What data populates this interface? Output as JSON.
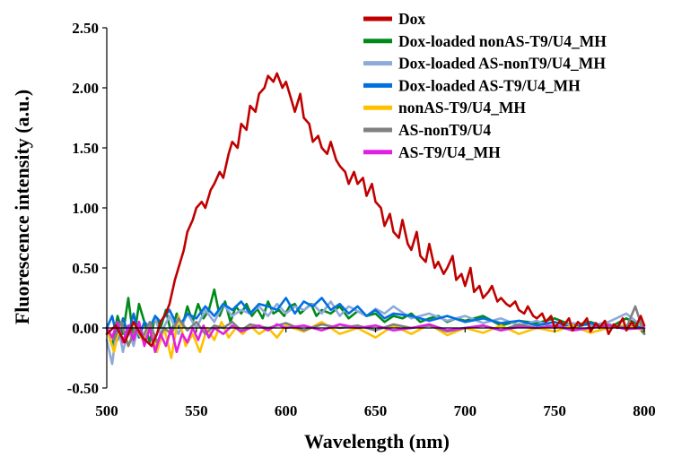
{
  "chart_data": {
    "type": "line",
    "title": "",
    "xlabel": "Wavelength (nm)",
    "ylabel": "Fluorescence intensity (a.u.)",
    "xlim": [
      500,
      800
    ],
    "ylim": [
      -0.5,
      2.5
    ],
    "xticks": [
      500,
      550,
      600,
      650,
      700,
      750,
      800
    ],
    "xtick_labels": [
      "500",
      "550",
      "600",
      "650",
      "700",
      "750",
      "800"
    ],
    "yticks": [
      -0.5,
      0,
      0.5,
      1,
      1.5,
      2,
      2.5
    ],
    "ytick_labels": [
      "-0.50",
      "0.00",
      "0.50",
      "1.00",
      "1.50",
      "2.00",
      "2.50"
    ],
    "grid": false,
    "legend_position": "top-right",
    "series": [
      {
        "name": "Dox",
        "color": "#c00000",
        "x": [
          500,
          505,
          510,
          515,
          520,
          525,
          528,
          530,
          533,
          535,
          538,
          540,
          543,
          545,
          548,
          550,
          553,
          555,
          558,
          560,
          563,
          565,
          568,
          570,
          573,
          575,
          578,
          580,
          583,
          585,
          588,
          590,
          593,
          595,
          598,
          600,
          603,
          605,
          608,
          610,
          613,
          615,
          618,
          620,
          623,
          625,
          628,
          630,
          633,
          635,
          638,
          640,
          643,
          645,
          648,
          650,
          653,
          655,
          658,
          660,
          663,
          665,
          668,
          670,
          673,
          675,
          678,
          680,
          683,
          685,
          688,
          690,
          693,
          695,
          698,
          700,
          703,
          705,
          708,
          710,
          713,
          715,
          718,
          720,
          723,
          725,
          728,
          730,
          733,
          735,
          738,
          740,
          743,
          745,
          748,
          750,
          753,
          755,
          758,
          760,
          763,
          765,
          768,
          770,
          773,
          775,
          778,
          780,
          783,
          785,
          788,
          790,
          793,
          795,
          798,
          800
        ],
        "y": [
          -0.05,
          0.02,
          -0.12,
          0.05,
          -0.08,
          -0.15,
          -0.05,
          0.05,
          0.12,
          0.2,
          0.4,
          0.5,
          0.65,
          0.8,
          0.9,
          1.0,
          1.05,
          1.0,
          1.15,
          1.2,
          1.3,
          1.25,
          1.45,
          1.55,
          1.5,
          1.7,
          1.65,
          1.85,
          1.8,
          1.95,
          2.0,
          2.1,
          2.05,
          2.12,
          2.0,
          2.05,
          1.9,
          1.8,
          1.95,
          1.75,
          1.7,
          1.55,
          1.6,
          1.5,
          1.45,
          1.55,
          1.4,
          1.35,
          1.3,
          1.2,
          1.3,
          1.2,
          1.25,
          1.1,
          1.2,
          1.05,
          1.0,
          0.85,
          0.95,
          0.8,
          0.75,
          0.9,
          0.7,
          0.65,
          0.8,
          0.6,
          0.55,
          0.7,
          0.5,
          0.55,
          0.45,
          0.5,
          0.6,
          0.4,
          0.45,
          0.35,
          0.5,
          0.3,
          0.35,
          0.25,
          0.3,
          0.35,
          0.22,
          0.25,
          0.2,
          0.18,
          0.22,
          0.15,
          0.12,
          0.18,
          0.1,
          0.08,
          0.12,
          0.05,
          0.1,
          0.0,
          0.06,
          0.02,
          0.08,
          -0.02,
          0.05,
          0.02,
          0.08,
          -0.03,
          0.04,
          0.0,
          0.06,
          -0.05,
          0.03,
          0.0,
          0.08,
          -0.02,
          0.05,
          0.0,
          0.1,
          0.02
        ]
      },
      {
        "name": "Dox-loaded nonAS-T9/U4_MH",
        "color": "#008a1a",
        "x": [
          500,
          503,
          506,
          509,
          512,
          515,
          518,
          521,
          524,
          527,
          530,
          533,
          536,
          539,
          542,
          545,
          548,
          551,
          554,
          557,
          560,
          563,
          566,
          569,
          572,
          575,
          578,
          581,
          584,
          587,
          590,
          593,
          596,
          599,
          602,
          605,
          608,
          611,
          614,
          617,
          620,
          625,
          630,
          635,
          640,
          645,
          650,
          655,
          660,
          665,
          670,
          675,
          680,
          685,
          690,
          695,
          700,
          710,
          720,
          730,
          740,
          750,
          760,
          770,
          780,
          790,
          795,
          800
        ],
        "y": [
          0.0,
          -0.15,
          0.1,
          -0.05,
          0.25,
          -0.1,
          0.2,
          0.05,
          -0.12,
          0.1,
          0.0,
          0.15,
          -0.05,
          0.12,
          0.0,
          0.18,
          0.05,
          0.2,
          0.08,
          0.15,
          0.32,
          0.1,
          0.22,
          0.05,
          0.18,
          0.12,
          0.2,
          0.1,
          0.16,
          0.08,
          0.22,
          0.12,
          0.15,
          0.1,
          0.18,
          0.2,
          0.12,
          0.16,
          0.2,
          0.1,
          0.15,
          0.12,
          0.18,
          0.08,
          0.14,
          0.1,
          0.12,
          0.05,
          0.1,
          0.08,
          0.12,
          0.05,
          0.08,
          0.1,
          0.05,
          0.08,
          0.06,
          0.1,
          0.02,
          0.06,
          0.04,
          0.08,
          0.02,
          0.05,
          0.0,
          0.08,
          0.04,
          -0.05
        ]
      },
      {
        "name": "Dox-loaded AS-nonT9/U4_MH",
        "color": "#8eaadb",
        "x": [
          500,
          503,
          506,
          509,
          512,
          515,
          518,
          521,
          524,
          527,
          530,
          535,
          540,
          545,
          550,
          555,
          560,
          565,
          570,
          575,
          580,
          585,
          590,
          595,
          600,
          605,
          610,
          615,
          620,
          625,
          630,
          635,
          640,
          645,
          650,
          655,
          660,
          670,
          680,
          690,
          700,
          710,
          720,
          730,
          740,
          750,
          760,
          770,
          780,
          790,
          800
        ],
        "y": [
          -0.1,
          -0.3,
          0.05,
          -0.2,
          0.0,
          -0.15,
          0.05,
          -0.1,
          0.0,
          0.08,
          -0.05,
          0.1,
          -0.05,
          0.12,
          0.0,
          0.15,
          0.05,
          0.2,
          0.1,
          0.15,
          0.12,
          0.18,
          0.1,
          0.2,
          0.12,
          0.18,
          0.15,
          0.2,
          0.12,
          0.22,
          0.1,
          0.18,
          0.14,
          0.1,
          0.16,
          0.12,
          0.18,
          0.08,
          0.12,
          0.06,
          0.1,
          0.04,
          0.08,
          0.02,
          0.06,
          0.0,
          0.04,
          0.02,
          0.05,
          0.12,
          0.0
        ]
      },
      {
        "name": "Dox-loaded AS-T9/U4_MH",
        "color": "#0070e0",
        "x": [
          500,
          503,
          506,
          509,
          512,
          515,
          518,
          521,
          524,
          527,
          530,
          535,
          540,
          545,
          550,
          555,
          560,
          565,
          570,
          575,
          580,
          585,
          590,
          595,
          600,
          605,
          610,
          615,
          620,
          625,
          630,
          635,
          640,
          645,
          650,
          655,
          660,
          670,
          680,
          690,
          700,
          710,
          720,
          730,
          740,
          750,
          760,
          770,
          780,
          790,
          800
        ],
        "y": [
          0.0,
          0.1,
          -0.1,
          0.08,
          -0.05,
          0.12,
          -0.08,
          0.05,
          0.0,
          0.1,
          0.05,
          0.15,
          0.0,
          0.12,
          0.08,
          0.18,
          0.1,
          0.2,
          0.15,
          0.22,
          0.12,
          0.2,
          0.18,
          0.15,
          0.25,
          0.12,
          0.22,
          0.18,
          0.25,
          0.15,
          0.2,
          0.12,
          0.18,
          0.1,
          0.15,
          0.08,
          0.12,
          0.1,
          0.06,
          0.1,
          0.05,
          0.08,
          0.04,
          0.06,
          0.02,
          0.05,
          0.0,
          0.04,
          0.0,
          0.02,
          0.0
        ]
      },
      {
        "name": "nonAS-T9/U4_MH",
        "color": "#ffc000",
        "x": [
          500,
          504,
          508,
          512,
          516,
          520,
          524,
          528,
          532,
          536,
          540,
          544,
          548,
          552,
          556,
          560,
          564,
          568,
          572,
          576,
          580,
          585,
          590,
          595,
          600,
          610,
          620,
          630,
          640,
          650,
          660,
          670,
          680,
          690,
          700,
          710,
          720,
          730,
          740,
          750,
          760,
          770,
          780,
          790,
          800
        ],
        "y": [
          0.0,
          -0.2,
          0.05,
          -0.15,
          0.0,
          -0.1,
          0.05,
          -0.2,
          0.0,
          -0.25,
          0.1,
          -0.15,
          -0.05,
          -0.2,
          0.0,
          -0.1,
          0.05,
          -0.08,
          0.0,
          -0.05,
          0.02,
          -0.05,
          0.0,
          -0.08,
          0.02,
          -0.03,
          0.05,
          -0.05,
          0.0,
          -0.08,
          0.02,
          -0.05,
          0.03,
          -0.06,
          0.0,
          -0.04,
          0.02,
          -0.05,
          0.0,
          -0.03,
          0.02,
          -0.04,
          0.0,
          0.02,
          -0.02
        ]
      },
      {
        "name": "AS-nonT9/U4",
        "color": "#808080",
        "x": [
          500,
          504,
          508,
          512,
          516,
          520,
          524,
          528,
          532,
          536,
          540,
          545,
          550,
          555,
          560,
          565,
          570,
          575,
          580,
          590,
          600,
          610,
          620,
          630,
          640,
          650,
          660,
          670,
          680,
          690,
          700,
          710,
          720,
          730,
          740,
          750,
          760,
          770,
          780,
          790,
          795,
          800
        ],
        "y": [
          0.0,
          -0.1,
          0.05,
          -0.15,
          0.0,
          -0.08,
          0.05,
          -0.12,
          0.0,
          -0.05,
          0.08,
          -0.02,
          0.05,
          -0.05,
          0.02,
          0.0,
          0.05,
          -0.02,
          0.03,
          0.0,
          0.04,
          -0.02,
          0.03,
          0.0,
          0.02,
          -0.02,
          0.03,
          0.0,
          0.02,
          -0.03,
          0.0,
          0.02,
          -0.02,
          0.03,
          0.0,
          0.02,
          -0.02,
          0.0,
          0.03,
          0.0,
          0.18,
          -0.05
        ]
      },
      {
        "name": "AS-T9/U4_MH",
        "color": "#e020e0",
        "x": [
          500,
          503,
          506,
          509,
          512,
          515,
          518,
          521,
          524,
          527,
          530,
          533,
          536,
          539,
          542,
          545,
          548,
          551,
          554,
          557,
          560,
          565,
          570,
          575,
          580,
          585,
          590,
          595,
          600,
          610,
          620,
          630,
          640,
          650,
          660,
          670,
          680,
          690,
          700,
          710,
          720,
          730,
          740,
          750,
          760,
          770,
          780,
          790,
          800
        ],
        "y": [
          0.0,
          -0.08,
          0.05,
          -0.12,
          0.02,
          -0.1,
          0.05,
          -0.15,
          0.0,
          -0.2,
          -0.05,
          -0.15,
          0.0,
          -0.2,
          -0.05,
          -0.12,
          0.0,
          -0.1,
          0.02,
          -0.08,
          0.0,
          -0.05,
          0.02,
          -0.03,
          0.0,
          0.02,
          -0.02,
          0.03,
          0.0,
          0.02,
          -0.02,
          0.03,
          0.0,
          0.02,
          -0.02,
          0.0,
          0.03,
          -0.02,
          0.0,
          0.02,
          -0.02,
          0.01,
          0.0,
          0.02,
          -0.02,
          0.0,
          0.02,
          -0.01,
          0.0
        ]
      }
    ]
  }
}
